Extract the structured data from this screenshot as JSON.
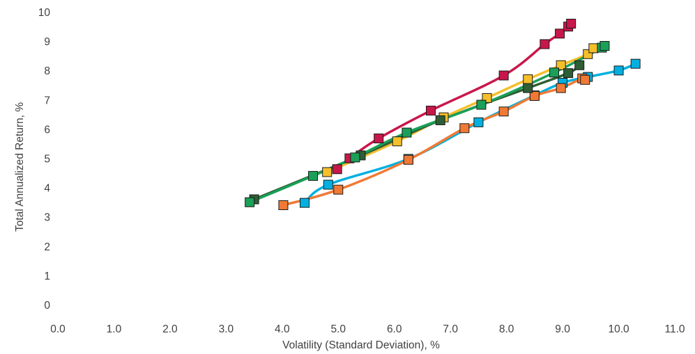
{
  "chart_data": {
    "type": "line",
    "xlabel": "Volatility (Standard Deviation), %",
    "ylabel": "Total Annualized Return, %",
    "xlim": [
      0.0,
      11.0
    ],
    "ylim": [
      0,
      10
    ],
    "x_ticks": [
      "0.0",
      "1.0",
      "2.0",
      "3.0",
      "4.0",
      "5.0",
      "6.0",
      "7.0",
      "8.0",
      "9.0",
      "10.0",
      "11.0"
    ],
    "y_ticks": [
      "0",
      "1",
      "2",
      "3",
      "4",
      "5",
      "6",
      "7",
      "8",
      "9",
      "10"
    ],
    "grid": false,
    "legend": "none",
    "marker": "square",
    "series": [
      {
        "color": "#00b0e0",
        "points": [
          [
            4.4,
            3.5
          ],
          [
            4.82,
            4.12
          ],
          [
            6.25,
            5.0
          ],
          [
            7.5,
            6.25
          ],
          [
            8.5,
            7.17
          ],
          [
            9.0,
            7.6
          ],
          [
            9.45,
            7.8
          ],
          [
            10.0,
            8.02
          ],
          [
            10.3,
            8.25
          ]
        ]
      },
      {
        "color": "#f07a35",
        "points": [
          [
            4.02,
            3.42
          ],
          [
            5.0,
            3.95
          ],
          [
            6.25,
            4.97
          ],
          [
            7.25,
            6.05
          ],
          [
            7.95,
            6.62
          ],
          [
            8.5,
            7.15
          ],
          [
            8.97,
            7.42
          ],
          [
            9.35,
            7.75
          ],
          [
            9.4,
            7.7
          ]
        ]
      },
      {
        "color": "#c8174a",
        "points": [
          [
            4.98,
            4.65
          ],
          [
            5.2,
            5.02
          ],
          [
            5.72,
            5.7
          ],
          [
            6.65,
            6.65
          ],
          [
            7.95,
            7.85
          ],
          [
            8.68,
            8.92
          ],
          [
            8.95,
            9.28
          ],
          [
            9.1,
            9.52
          ],
          [
            9.15,
            9.62
          ]
        ]
      },
      {
        "color": "#f5bf2b",
        "points": [
          [
            4.8,
            4.55
          ],
          [
            6.05,
            5.6
          ],
          [
            6.88,
            6.42
          ],
          [
            7.65,
            7.08
          ],
          [
            8.38,
            7.72
          ],
          [
            8.97,
            8.2
          ],
          [
            9.45,
            8.58
          ],
          [
            9.55,
            8.78
          ]
        ]
      },
      {
        "color": "#2e5e35",
        "points": [
          [
            3.5,
            3.62
          ],
          [
            5.4,
            5.12
          ],
          [
            6.82,
            6.32
          ],
          [
            8.38,
            7.42
          ],
          [
            9.1,
            7.93
          ],
          [
            9.3,
            8.2
          ]
        ]
      },
      {
        "color": "#1aa058",
        "points": [
          [
            3.42,
            3.52
          ],
          [
            4.55,
            4.42
          ],
          [
            5.3,
            5.05
          ],
          [
            6.22,
            5.9
          ],
          [
            7.55,
            6.85
          ],
          [
            8.85,
            7.95
          ],
          [
            9.7,
            8.8
          ],
          [
            9.75,
            8.86
          ]
        ]
      }
    ]
  }
}
